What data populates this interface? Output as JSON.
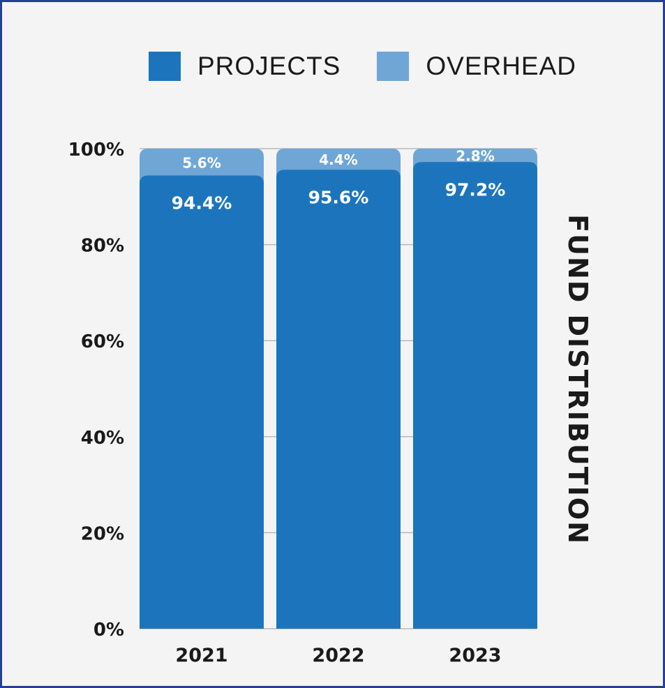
{
  "chart_data": {
    "type": "bar",
    "stacked": true,
    "categories": [
      "2021",
      "2022",
      "2023"
    ],
    "series": [
      {
        "name": "PROJECTS",
        "values": [
          94.4,
          95.6,
          97.2
        ],
        "labels": [
          "94.4%",
          "95.6%",
          "97.2%"
        ],
        "color": "#1c75bc"
      },
      {
        "name": "OVERHEAD",
        "values": [
          5.6,
          4.4,
          2.8
        ],
        "labels": [
          "5.6%",
          "4.4%",
          "2.8%"
        ],
        "color": "#6fa6d6"
      }
    ],
    "ylabel": "FUND DISTRIBUTION",
    "ylim": [
      0,
      100
    ],
    "yticks": [
      0,
      20,
      40,
      60,
      80,
      100
    ],
    "ytick_labels": [
      "0%",
      "20%",
      "40%",
      "60%",
      "80%",
      "100%"
    ],
    "legend_position": "top",
    "grid": true
  },
  "colors": {
    "border": "#24428f",
    "background": "#f4f4f4",
    "grid": "#b9b9b9",
    "text": "#1a1a1a"
  }
}
